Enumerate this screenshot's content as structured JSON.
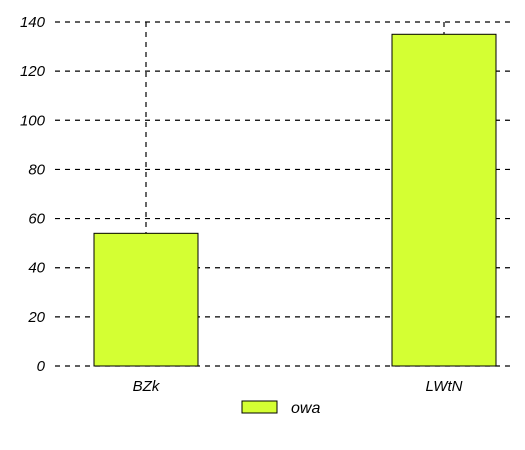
{
  "chart_data": {
    "type": "bar",
    "categories": [
      "BZk",
      "LWtN"
    ],
    "series": [
      {
        "name": "owa",
        "values": [
          54,
          135
        ]
      }
    ],
    "ylim": [
      0,
      140
    ],
    "yticks": [
      0,
      20,
      40,
      60,
      80,
      100,
      120,
      140
    ],
    "grid": true,
    "legend": "bottom-center",
    "colors": {
      "bar_fill": "#d4ff33",
      "bar_stroke": "#000000",
      "grid": "#000000"
    }
  }
}
